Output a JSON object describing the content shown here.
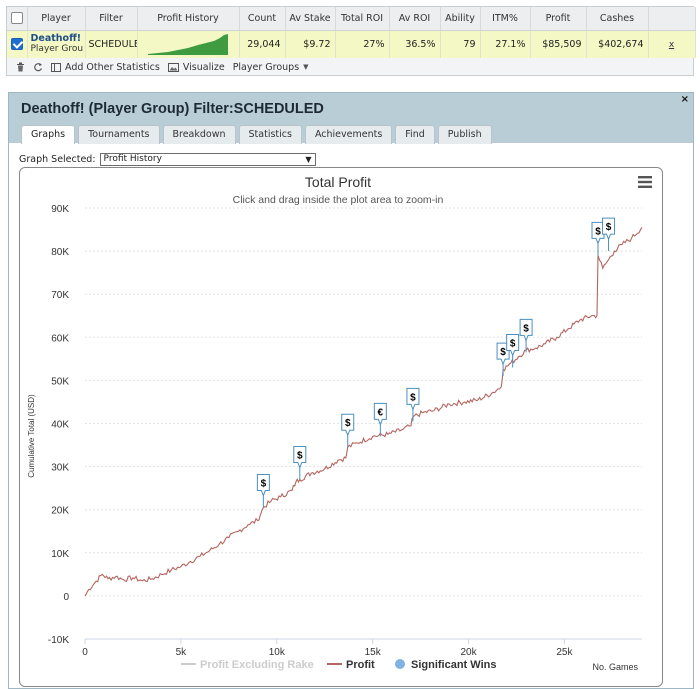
{
  "stats_table": {
    "headers": [
      "",
      "Player",
      "Filter",
      "Profit History",
      "Count",
      "Av Stake",
      "Total ROI",
      "Av ROI",
      "Ability",
      "ITM%",
      "Profit",
      "Cashes",
      ""
    ],
    "row": {
      "checked": true,
      "player_name": "Deathoff!",
      "player_sub": "Player Grou",
      "filter": "SCHEDULE",
      "count": "29,044",
      "av_stake": "$9.72",
      "total_roi": "27%",
      "av_roi": "36.5%",
      "ability": "79",
      "itm": "27.1%",
      "profit": "$85,509",
      "cashes": "$402,674",
      "remove": "x"
    }
  },
  "toolbar": {
    "delete_icon": "trash-icon",
    "refresh_icon": "refresh-icon",
    "add_stats_label": "Add Other Statistics",
    "visualize_label": "Visualize",
    "player_groups_label": "Player Groups"
  },
  "panel": {
    "title": "Deathoff! (Player Group) Filter:SCHEDULED",
    "close": "×",
    "tabs": [
      "Graphs",
      "Tournaments",
      "Breakdown",
      "Statistics",
      "Achievements",
      "Find",
      "Publish"
    ],
    "active_tab": "Graphs",
    "graph_selected_label": "Graph Selected:",
    "graph_selected_value": "Profit History"
  },
  "colors": {
    "profit_line": "#b5655f",
    "rake_line": "#cccccc",
    "significant_wins": "#7fb2e5"
  },
  "chart_data": {
    "type": "line",
    "title": "Total Profit",
    "subtitle": "Click and drag inside the plot area to zoom-in",
    "ylabel": "Cumulative Total (USD)",
    "xlabel": "No. Games",
    "xlim": [
      0,
      29044
    ],
    "ylim": [
      -10000,
      90000
    ],
    "x_ticks": [
      "0",
      "5k",
      "10k",
      "15k",
      "20k",
      "25k"
    ],
    "y_ticks": [
      "-10K",
      "0",
      "10K",
      "20K",
      "30K",
      "40K",
      "50K",
      "60K",
      "70K",
      "80K",
      "90K"
    ],
    "legend": [
      "Profit Excluding Rake",
      "Profit",
      "Significant Wins"
    ],
    "series": [
      {
        "name": "Profit",
        "x": [
          0,
          200,
          500,
          900,
          1200,
          1600,
          2000,
          2500,
          3000,
          3500,
          4000,
          4500,
          5000,
          5500,
          6000,
          6500,
          7000,
          7500,
          8000,
          8500,
          9000,
          9200,
          9300,
          9700,
          10200,
          10800,
          11000,
          11200,
          11800,
          12500,
          13200,
          13600,
          13700,
          14200,
          15000,
          15800,
          16500,
          17000,
          17100,
          17600,
          18200,
          19000,
          19800,
          20500,
          21200,
          21700,
          21800,
          22200,
          22600,
          23000,
          23500,
          24000,
          24600,
          25200,
          25800,
          26400,
          26700,
          26750,
          27000,
          27300,
          27600,
          28000,
          28500,
          29044
        ],
        "y": [
          0,
          1500,
          3000,
          5000,
          4000,
          4500,
          3800,
          4200,
          3500,
          4000,
          5000,
          6000,
          6800,
          8000,
          9200,
          10500,
          12000,
          13500,
          15000,
          16500,
          17500,
          19500,
          20500,
          22000,
          23000,
          24500,
          26500,
          27000,
          28500,
          29500,
          31500,
          32000,
          34500,
          35500,
          37000,
          37500,
          38500,
          39500,
          41500,
          42500,
          43000,
          44500,
          45000,
          45500,
          47000,
          48500,
          52500,
          54000,
          55500,
          57000,
          57500,
          58500,
          60000,
          62000,
          64000,
          65000,
          65000,
          79000,
          76000,
          78000,
          80000,
          81500,
          83000,
          85509
        ]
      }
    ],
    "significant_wins": [
      {
        "x": 9300,
        "y": 20500,
        "label": "$"
      },
      {
        "x": 11200,
        "y": 27000,
        "label": "$"
      },
      {
        "x": 13700,
        "y": 34500,
        "label": "$"
      },
      {
        "x": 15400,
        "y": 37000,
        "label": "€"
      },
      {
        "x": 17100,
        "y": 40500,
        "label": "$"
      },
      {
        "x": 21800,
        "y": 51000,
        "label": "$"
      },
      {
        "x": 22300,
        "y": 53000,
        "label": "$"
      },
      {
        "x": 23000,
        "y": 56500,
        "label": "$"
      },
      {
        "x": 26750,
        "y": 79000,
        "label": "$"
      },
      {
        "x": 27300,
        "y": 80000,
        "label": "$"
      }
    ]
  }
}
